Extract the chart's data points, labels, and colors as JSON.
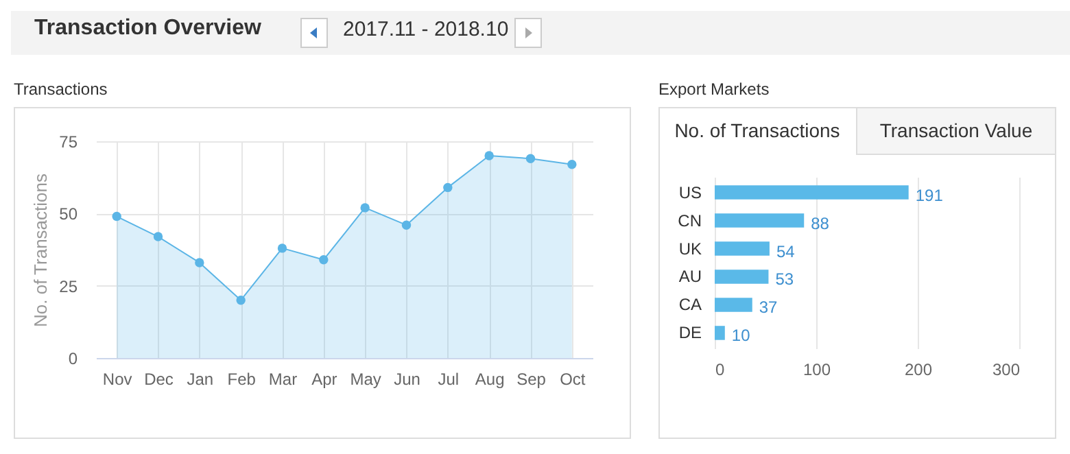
{
  "chart_data": [
    {
      "type": "other",
      "title": "Transaction Overview",
      "annotations": [
        "2017.11 - 2018.10"
      ]
    },
    {
      "type": "area",
      "title": "Transactions",
      "ylabel": "No. of Transactions",
      "categories": [
        "Nov",
        "Dec",
        "Jan",
        "Feb",
        "Mar",
        "Apr",
        "May",
        "Jun",
        "Jul",
        "Aug",
        "Sep",
        "Oct"
      ],
      "series": [
        {
          "color": "#5bb5e6",
          "values": [
            49,
            42,
            33,
            20,
            38,
            34,
            52,
            46,
            59,
            70,
            69,
            67
          ]
        }
      ],
      "ylim": [
        0,
        75
      ],
      "yticks": [
        0,
        25,
        50,
        75
      ],
      "grid": true,
      "marker": "circle"
    },
    {
      "type": "bar",
      "orientation": "horizontal",
      "title": "Export Markets",
      "annotations": [
        "No. of Transactions",
        "Transaction Value"
      ],
      "categories": [
        "US",
        "CN",
        "UK",
        "AU",
        "CA",
        "DE"
      ],
      "values": [
        191,
        88,
        54,
        53,
        37,
        10
      ],
      "color": "#5ab9e8",
      "xlim": [
        0,
        300
      ],
      "xticks": [
        0,
        100,
        200,
        300
      ],
      "grid": "x",
      "data_labels": true
    }
  ]
}
